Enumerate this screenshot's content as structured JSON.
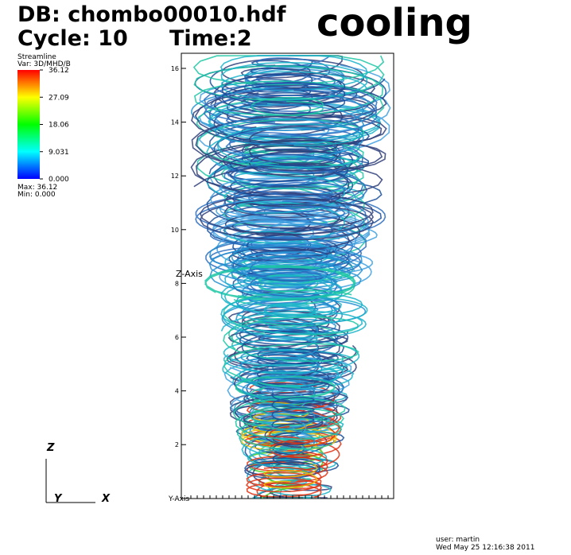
{
  "header": {
    "database": "DB: chombo00010.hdf",
    "cycle": "Cycle: 10",
    "time": "Time:2",
    "title": "cooling"
  },
  "legend": {
    "plot": "Streamline",
    "variable": "Var: 3D/MHD/B",
    "labels": [
      "36.12",
      "27.09",
      "18.06",
      "9.031",
      "0.000"
    ],
    "max": "Max:  36.12",
    "min": "Min:  0.000"
  },
  "plot": {
    "z_axis": "Z-Axis",
    "y_axis": "Y-Axis",
    "z_ticks": [
      "16",
      "14",
      "12",
      "10",
      "8",
      "6",
      "4",
      "2"
    ]
  },
  "triad": {
    "z": "Z",
    "y": "Y",
    "x": "X"
  },
  "footer": {
    "user": "user: martin",
    "date": "Wed May 25 12:16:38 2011"
  }
}
